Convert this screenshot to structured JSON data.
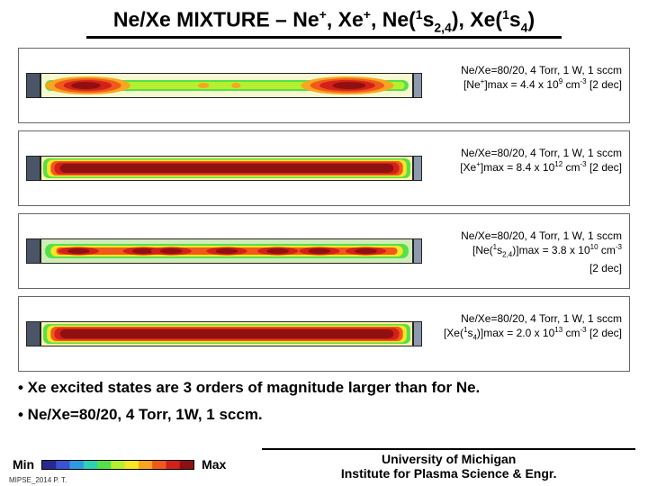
{
  "title_html": "Ne/Xe MIXTURE – Ne<sup>+</sup>, Xe<sup>+</sup>, Ne(<sup>1</sup>s<sub>2,4</sub>), Xe(<sup>1</sup>s<sub>4</sub>)",
  "panels": [
    {
      "caption_html": "Ne/Xe=80/20, 4 Torr, 1 W, 1 sccm<br>[Ne<sup>+</sup>]max = 4.4 x 10<sup>9</sup> cm<sup>-3</sup> [2 dec]",
      "pattern": "lobes",
      "bg": "#f5f9d0"
    },
    {
      "caption_html": "Ne/Xe=80/20, 4 Torr, 1 W, 1 sccm<br>[Xe<sup>+</sup>]max = 8.4 x 10<sup>12</sup> cm<sup>-3</sup> [2 dec]",
      "pattern": "full",
      "bg": "#fff4aa"
    },
    {
      "caption_html": "Ne/Xe=80/20, 4 Torr, 1 W, 1 sccm<br>[Ne(<sup>1</sup>s<sub>2,4</sub>)]max = 3.8 x 10<sup>10</sup> cm<sup>-3</sup><br>[2 dec]",
      "pattern": "striations",
      "bg": "#d0edb8"
    },
    {
      "caption_html": "Ne/Xe=80/20, 4 Torr, 1 W, 1 sccm<br>[Xe(<sup>1</sup>s<sub>4</sub>)]max = 2.0 x 10<sup>13</sup> cm<sup>-3</sup> [2 dec]",
      "pattern": "full",
      "bg": "#fff4aa"
    }
  ],
  "bullets": [
    "• Xe excited states are 3 orders of magnitude larger than for Ne.",
    "• Ne/Xe=80/20, 4 Torr, 1W, 1 sccm."
  ],
  "legend": {
    "min": "Min",
    "max": "Max"
  },
  "affiliation_html": "University of Michigan<br>Institute for Plasma Science & Engr.",
  "copyright": "MIPSE_2014 P. T.",
  "colormap": [
    "#262a8f",
    "#3a52d4",
    "#2f9ae0",
    "#2fd0b8",
    "#55e04a",
    "#b6ef2f",
    "#f7e526",
    "#f9a51f",
    "#ef5a1a",
    "#d4201a",
    "#8f1010"
  ]
}
